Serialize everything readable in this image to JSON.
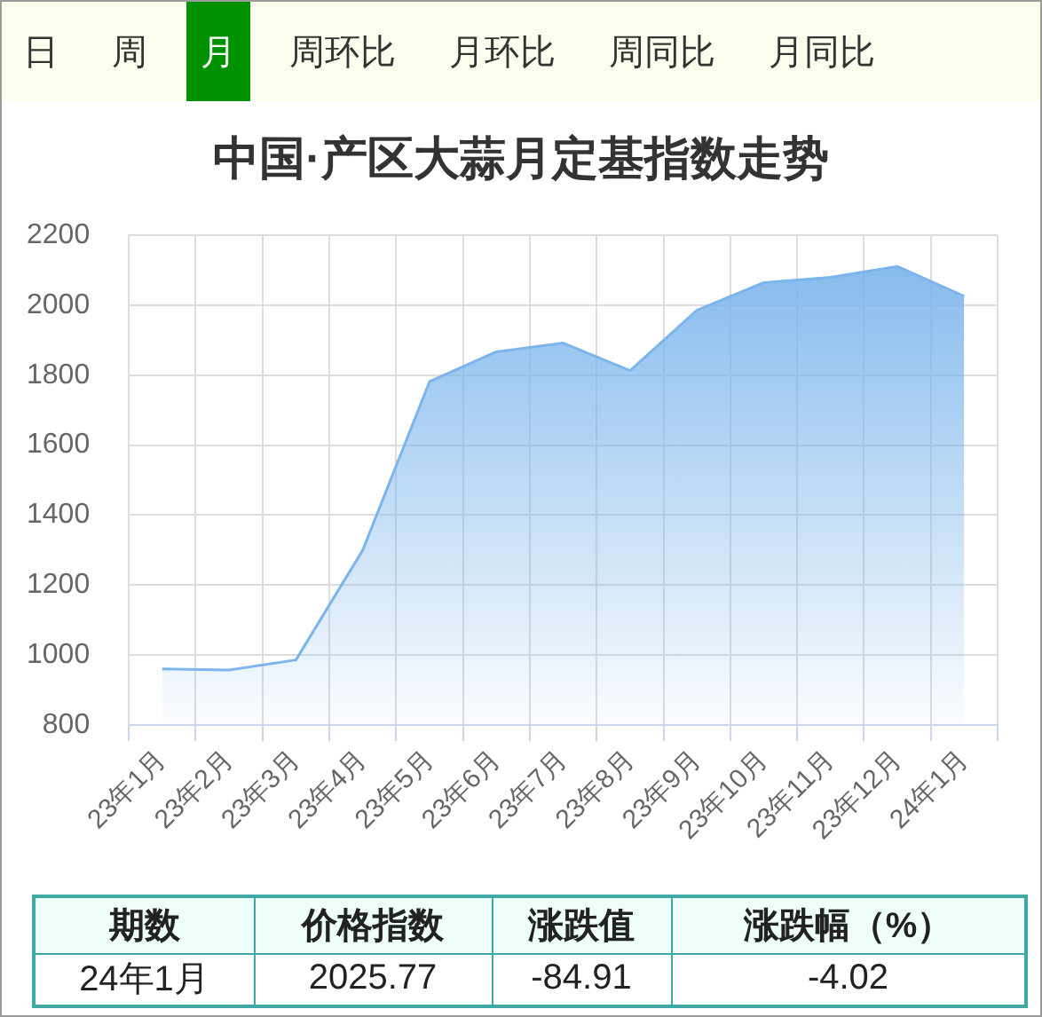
{
  "chart_data": {
    "type": "area",
    "title": "中国·产区大蒜月定基指数走势",
    "categories": [
      "23年1月",
      "23年2月",
      "23年3月",
      "23年4月",
      "23年5月",
      "23年6月",
      "23年7月",
      "23年8月",
      "23年9月",
      "23年10月",
      "23年11月",
      "23年12月",
      "24年1月"
    ],
    "values": [
      960,
      957,
      986,
      1300,
      1782,
      1867,
      1892,
      1813,
      1986,
      2065,
      2080,
      2111,
      2025.77
    ],
    "color": "#7cb5ec",
    "ylim": [
      800,
      2200
    ],
    "yticks": [
      800,
      1000,
      1200,
      1400,
      1600,
      1800,
      2000,
      2200
    ],
    "grid": true,
    "annotations": [
      "日",
      "周",
      "月",
      "周环比",
      "月环比",
      "周同比",
      "月同比",
      "期数",
      "价格指数",
      "涨跌值",
      "涨跌幅（%）",
      "24年1月",
      "2025.77",
      "-84.91",
      "-4.02"
    ]
  }
}
